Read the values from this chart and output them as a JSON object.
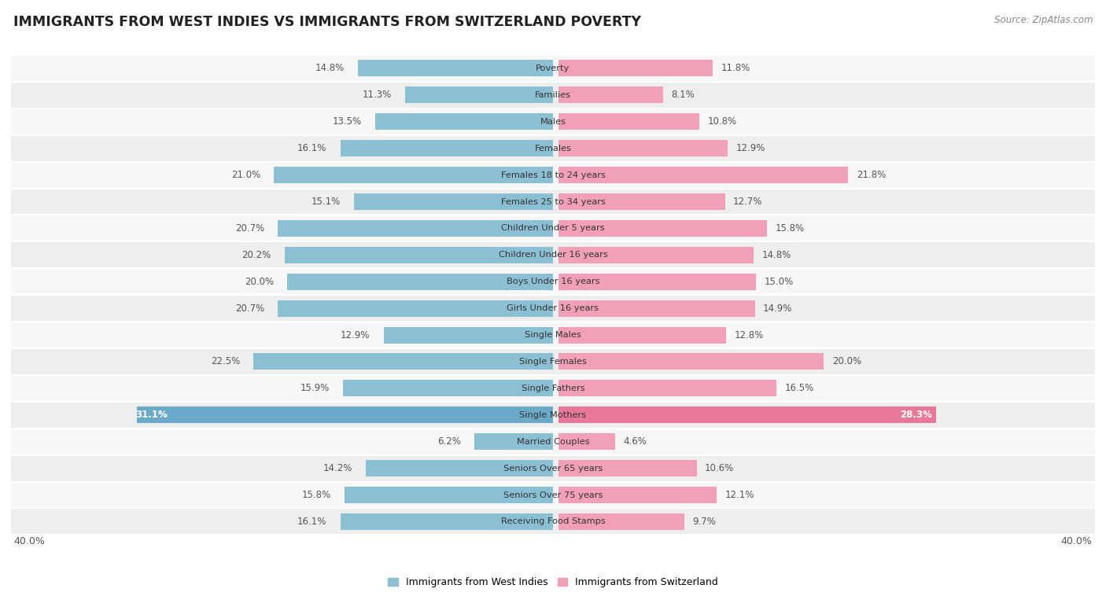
{
  "title": "IMMIGRANTS FROM WEST INDIES VS IMMIGRANTS FROM SWITZERLAND POVERTY",
  "source": "Source: ZipAtlas.com",
  "categories": [
    "Poverty",
    "Families",
    "Males",
    "Females",
    "Females 18 to 24 years",
    "Females 25 to 34 years",
    "Children Under 5 years",
    "Children Under 16 years",
    "Boys Under 16 years",
    "Girls Under 16 years",
    "Single Males",
    "Single Females",
    "Single Fathers",
    "Single Mothers",
    "Married Couples",
    "Seniors Over 65 years",
    "Seniors Over 75 years",
    "Receiving Food Stamps"
  ],
  "west_indies": [
    14.8,
    11.3,
    13.5,
    16.1,
    21.0,
    15.1,
    20.7,
    20.2,
    20.0,
    20.7,
    12.9,
    22.5,
    15.9,
    31.1,
    6.2,
    14.2,
    15.8,
    16.1
  ],
  "switzerland": [
    11.8,
    8.1,
    10.8,
    12.9,
    21.8,
    12.7,
    15.8,
    14.8,
    15.0,
    14.9,
    12.8,
    20.0,
    16.5,
    28.3,
    4.6,
    10.6,
    12.1,
    9.7
  ],
  "color_west_indies": "#8bbfd4",
  "color_switzerland": "#f2a0b8",
  "color_west_indies_highlight": "#6aaac8",
  "color_switzerland_highlight": "#e87898",
  "axis_max": 40.0,
  "bar_height": 0.62,
  "legend_label_west": "Immigrants from West Indies",
  "legend_label_swiss": "Immigrants from Switzerland"
}
